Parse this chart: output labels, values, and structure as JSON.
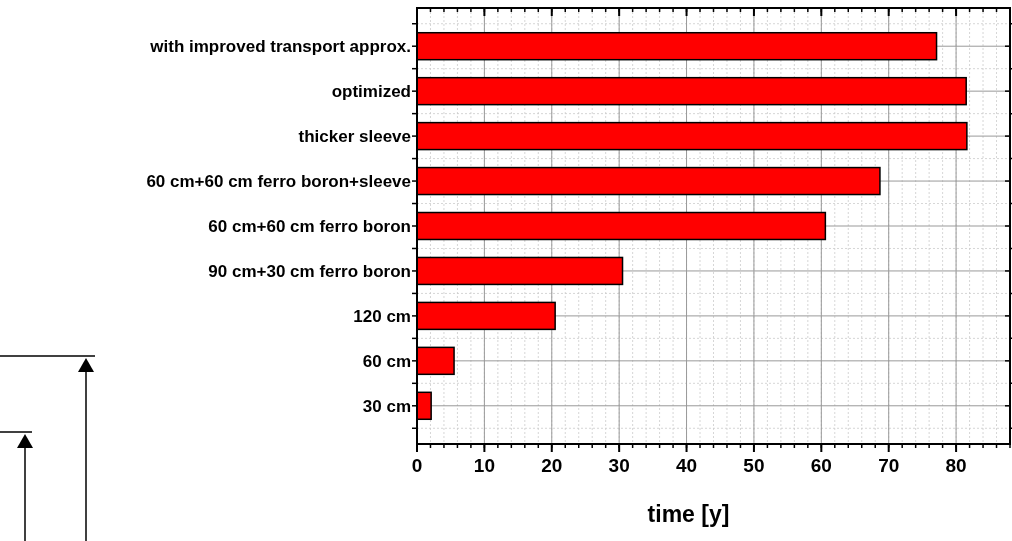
{
  "chart_data": {
    "type": "bar",
    "orientation": "horizontal",
    "xlabel": "time [y]",
    "categories": [
      "with improved transport approx.",
      "optimized",
      "thicker sleeve",
      "60 cm+60 cm ferro boron+sleeve",
      "60 cm+60 cm ferro boron",
      "90 cm+30 cm ferro boron",
      "120 cm",
      "60 cm",
      "30 cm"
    ],
    "values": [
      77.1,
      81.5,
      81.6,
      68.7,
      60.6,
      30.5,
      20.5,
      5.5,
      2.1
    ],
    "color": "#ff0000",
    "xlim": [
      0,
      88
    ],
    "xticks": [
      0,
      10,
      20,
      30,
      40,
      50,
      60,
      70,
      80
    ],
    "grid": true
  }
}
